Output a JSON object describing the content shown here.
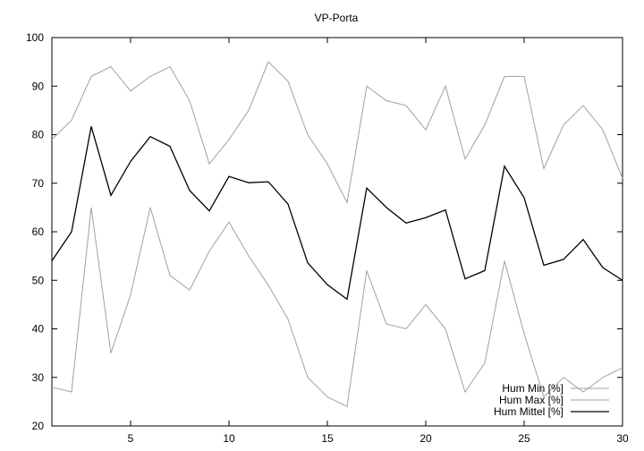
{
  "chart_data": {
    "type": "line",
    "title": "VP-Porta",
    "xlabel": "",
    "ylabel": "",
    "xlim": [
      1,
      30
    ],
    "ylim": [
      20,
      100
    ],
    "xticks": [
      5,
      10,
      15,
      20,
      25,
      30
    ],
    "yticks": [
      20,
      30,
      40,
      50,
      60,
      70,
      80,
      90,
      100
    ],
    "x": [
      1,
      2,
      3,
      4,
      5,
      6,
      7,
      8,
      9,
      10,
      11,
      12,
      13,
      14,
      15,
      16,
      17,
      18,
      19,
      20,
      21,
      22,
      23,
      24,
      25,
      26,
      27,
      28,
      29,
      30
    ],
    "grid": false,
    "legend_position": "bottom-right",
    "series": [
      {
        "name": "Hum Min [%]",
        "color": "#a0a0a0",
        "values": [
          28,
          27,
          65,
          35,
          47,
          65,
          51,
          48,
          56,
          62,
          55,
          49,
          42,
          30,
          26,
          24,
          52,
          41,
          40,
          45,
          40,
          27,
          33,
          54,
          39,
          26,
          30,
          27,
          30,
          32
        ]
      },
      {
        "name": "Hum Max [%]",
        "color": "#a0a0a0",
        "values": [
          79,
          83,
          92,
          94,
          89,
          92,
          94,
          87,
          74,
          79,
          85,
          95,
          91,
          80,
          74,
          66,
          90,
          87,
          86,
          81,
          90,
          75,
          82,
          92,
          92,
          73,
          82,
          86,
          81,
          71
        ]
      },
      {
        "name": "Hum Mittel [%]",
        "color": "#000000",
        "values": [
          54,
          60,
          81.7,
          67.5,
          74.5,
          79.6,
          77.6,
          68.5,
          64.3,
          71.4,
          70.1,
          70.3,
          65.7,
          53.6,
          49.1,
          46.1,
          69,
          65,
          61.8,
          62.9,
          64.5,
          50.3,
          52,
          73.5,
          67,
          53.1,
          54.3,
          58.4,
          52.6,
          50
        ]
      }
    ]
  }
}
